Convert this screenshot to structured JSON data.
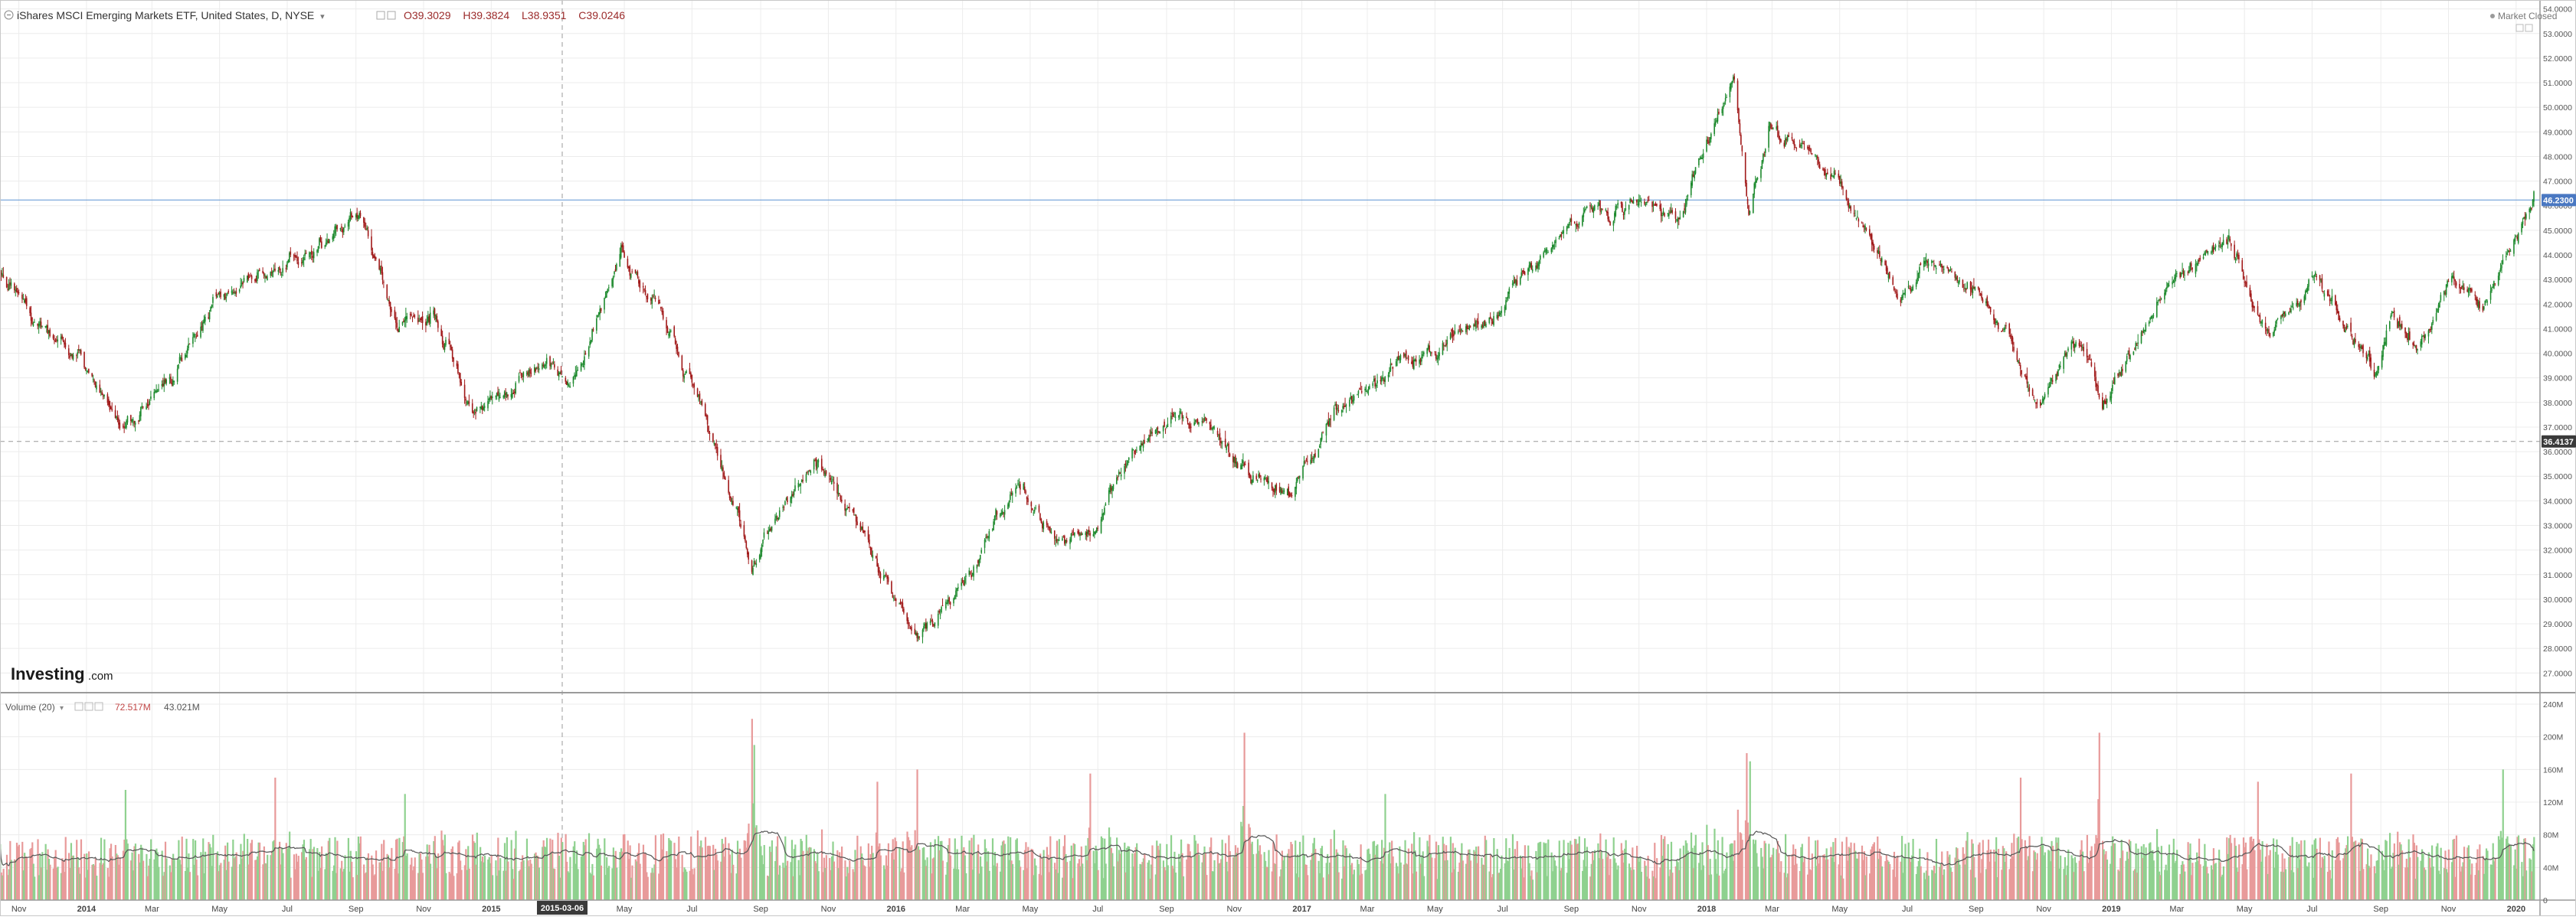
{
  "header": {
    "title": "iShares MSCI Emerging Markets ETF, United States, D, NYSE",
    "title_arrow": "▾",
    "open": "O39.3029",
    "high": "H39.3824",
    "low": "L38.9351",
    "close": "C39.0246",
    "market_status": "Market Closed"
  },
  "watermark": {
    "brand": "Investing",
    "suffix": ".com"
  },
  "volume_header": {
    "label": "Volume (20)",
    "label_arrow": "▾",
    "value_volume": "72.517M",
    "value_ma": "43.021M"
  },
  "price_tags": {
    "last": "46.2300",
    "crosshair": "36.4137"
  },
  "crosshair_date": "2015-03-06",
  "colors": {
    "up": "#1e8a2e",
    "down": "#a11a1a",
    "volume_up": "#8fd18f",
    "volume_down": "#e89a9a",
    "last_line": "#6f9fd8",
    "last_tag": "#4a78c2",
    "crosshair_tag": "#3a3a3a",
    "ma_line": "#555555",
    "grid": "#ececec"
  },
  "chart_data": [
    {
      "type": "candlestick",
      "series_name": "iShares MSCI Emerging Markets ETF",
      "x_range": [
        "2013-10-15",
        "2020-01-17"
      ],
      "ylim": [
        26.2,
        54.3
      ],
      "y_ticks": [
        "27.0000",
        "28.0000",
        "29.0000",
        "30.0000",
        "31.0000",
        "32.0000",
        "33.0000",
        "34.0000",
        "35.0000",
        "36.0000",
        "37.0000",
        "38.0000",
        "39.0000",
        "40.0000",
        "41.0000",
        "42.0000",
        "43.0000",
        "44.0000",
        "45.0000",
        "46.0000",
        "47.0000",
        "48.0000",
        "49.0000",
        "50.0000",
        "51.0000",
        "52.0000",
        "53.0000",
        "54.0000"
      ],
      "x_ticks": [
        {
          "date": "2013-11-01",
          "label": "Nov",
          "bold": false
        },
        {
          "date": "2014-01-01",
          "label": "2014",
          "bold": true
        },
        {
          "date": "2014-03-01",
          "label": "Mar",
          "bold": false
        },
        {
          "date": "2014-05-01",
          "label": "May",
          "bold": false
        },
        {
          "date": "2014-07-01",
          "label": "Jul",
          "bold": false
        },
        {
          "date": "2014-09-01",
          "label": "Sep",
          "bold": false
        },
        {
          "date": "2014-11-01",
          "label": "Nov",
          "bold": false
        },
        {
          "date": "2015-01-01",
          "label": "2015",
          "bold": true
        },
        {
          "date": "2015-05-01",
          "label": "May",
          "bold": false
        },
        {
          "date": "2015-07-01",
          "label": "Jul",
          "bold": false
        },
        {
          "date": "2015-09-01",
          "label": "Sep",
          "bold": false
        },
        {
          "date": "2015-11-01",
          "label": "Nov",
          "bold": false
        },
        {
          "date": "2016-01-01",
          "label": "2016",
          "bold": true
        },
        {
          "date": "2016-03-01",
          "label": "Mar",
          "bold": false
        },
        {
          "date": "2016-05-01",
          "label": "May",
          "bold": false
        },
        {
          "date": "2016-07-01",
          "label": "Jul",
          "bold": false
        },
        {
          "date": "2016-09-01",
          "label": "Sep",
          "bold": false
        },
        {
          "date": "2016-11-01",
          "label": "Nov",
          "bold": false
        },
        {
          "date": "2017-01-01",
          "label": "2017",
          "bold": true
        },
        {
          "date": "2017-03-01",
          "label": "Mar",
          "bold": false
        },
        {
          "date": "2017-05-01",
          "label": "May",
          "bold": false
        },
        {
          "date": "2017-07-01",
          "label": "Jul",
          "bold": false
        },
        {
          "date": "2017-09-01",
          "label": "Sep",
          "bold": false
        },
        {
          "date": "2017-11-01",
          "label": "Nov",
          "bold": false
        },
        {
          "date": "2018-01-01",
          "label": "2018",
          "bold": true
        },
        {
          "date": "2018-03-01",
          "label": "Mar",
          "bold": false
        },
        {
          "date": "2018-05-01",
          "label": "May",
          "bold": false
        },
        {
          "date": "2018-07-01",
          "label": "Jul",
          "bold": false
        },
        {
          "date": "2018-09-01",
          "label": "Sep",
          "bold": false
        },
        {
          "date": "2018-11-01",
          "label": "Nov",
          "bold": false
        },
        {
          "date": "2019-01-01",
          "label": "2019",
          "bold": true
        },
        {
          "date": "2019-03-01",
          "label": "Mar",
          "bold": false
        },
        {
          "date": "2019-05-01",
          "label": "May",
          "bold": false
        },
        {
          "date": "2019-07-01",
          "label": "Jul",
          "bold": false
        },
        {
          "date": "2019-09-01",
          "label": "Sep",
          "bold": false
        },
        {
          "date": "2019-11-01",
          "label": "Nov",
          "bold": false
        },
        {
          "date": "2020-01-01",
          "label": "2020",
          "bold": true
        }
      ],
      "last_price": 46.23,
      "crosshair_price": 36.4137,
      "close_path": [
        {
          "date": "2013-10-15",
          "close": 43.1
        },
        {
          "date": "2013-11-15",
          "close": 41.2
        },
        {
          "date": "2013-12-15",
          "close": 40.2
        },
        {
          "date": "2014-02-03",
          "close": 37.1
        },
        {
          "date": "2014-03-20",
          "close": 39.0
        },
        {
          "date": "2014-04-15",
          "close": 41.5
        },
        {
          "date": "2014-05-20",
          "close": 42.8
        },
        {
          "date": "2014-07-15",
          "close": 44.0
        },
        {
          "date": "2014-09-05",
          "close": 45.6
        },
        {
          "date": "2014-10-10",
          "close": 41.0
        },
        {
          "date": "2014-11-10",
          "close": 41.8
        },
        {
          "date": "2014-12-15",
          "close": 37.6
        },
        {
          "date": "2015-01-20",
          "close": 39.0
        },
        {
          "date": "2015-02-20",
          "close": 40.2
        },
        {
          "date": "2015-03-12",
          "close": 38.2
        },
        {
          "date": "2015-04-28",
          "close": 44.0
        },
        {
          "date": "2015-06-01",
          "close": 41.8
        },
        {
          "date": "2015-07-08",
          "close": 38.3
        },
        {
          "date": "2015-08-24",
          "close": 31.5
        },
        {
          "date": "2015-09-15",
          "close": 33.0
        },
        {
          "date": "2015-10-20",
          "close": 35.8
        },
        {
          "date": "2015-12-10",
          "close": 32.0
        },
        {
          "date": "2016-01-21",
          "close": 28.3
        },
        {
          "date": "2016-03-15",
          "close": 31.8
        },
        {
          "date": "2016-04-25",
          "close": 34.5
        },
        {
          "date": "2016-05-24",
          "close": 32.0
        },
        {
          "date": "2016-06-27",
          "close": 33.0
        },
        {
          "date": "2016-07-25",
          "close": 35.8
        },
        {
          "date": "2016-09-07",
          "close": 37.6
        },
        {
          "date": "2016-10-10",
          "close": 37.3
        },
        {
          "date": "2016-11-15",
          "close": 34.8
        },
        {
          "date": "2016-12-23",
          "close": 34.5
        },
        {
          "date": "2017-02-01",
          "close": 37.5
        },
        {
          "date": "2017-03-20",
          "close": 39.5
        },
        {
          "date": "2017-05-01",
          "close": 40.2
        },
        {
          "date": "2017-06-20",
          "close": 41.5
        },
        {
          "date": "2017-07-20",
          "close": 43.3
        },
        {
          "date": "2017-09-10",
          "close": 45.5
        },
        {
          "date": "2017-10-25",
          "close": 46.0
        },
        {
          "date": "2017-12-05",
          "close": 45.5
        },
        {
          "date": "2018-01-26",
          "close": 51.4
        },
        {
          "date": "2018-02-08",
          "close": 45.2
        },
        {
          "date": "2018-02-26",
          "close": 49.3
        },
        {
          "date": "2018-04-10",
          "close": 48.0
        },
        {
          "date": "2018-05-25",
          "close": 45.2
        },
        {
          "date": "2018-06-28",
          "close": 42.5
        },
        {
          "date": "2018-07-30",
          "close": 43.5
        },
        {
          "date": "2018-09-10",
          "close": 41.8
        },
        {
          "date": "2018-10-29",
          "close": 38.0
        },
        {
          "date": "2018-12-03",
          "close": 40.5
        },
        {
          "date": "2018-12-24",
          "close": 38.3
        },
        {
          "date": "2019-02-25",
          "close": 43.0
        },
        {
          "date": "2019-04-17",
          "close": 44.6
        },
        {
          "date": "2019-05-23",
          "close": 40.5
        },
        {
          "date": "2019-07-03",
          "close": 43.5
        },
        {
          "date": "2019-08-26",
          "close": 39.0
        },
        {
          "date": "2019-09-12",
          "close": 41.8
        },
        {
          "date": "2019-10-03",
          "close": 40.0
        },
        {
          "date": "2019-11-05",
          "close": 43.2
        },
        {
          "date": "2019-12-03",
          "close": 42.0
        },
        {
          "date": "2020-01-17",
          "close": 46.2
        }
      ]
    },
    {
      "type": "bar",
      "series_name": "Volume (20)",
      "ylim": [
        0,
        240
      ],
      "y_unit": "M",
      "y_ticks": [
        "0",
        "40M",
        "80M",
        "120M",
        "160M",
        "200M",
        "240M"
      ],
      "typical_volume_M": 55,
      "moving_average_period": 20,
      "spikes": [
        {
          "date": "2014-02-05",
          "volume_M": 135
        },
        {
          "date": "2014-06-20",
          "volume_M": 150
        },
        {
          "date": "2014-10-15",
          "volume_M": 130
        },
        {
          "date": "2015-08-24",
          "volume_M": 222
        },
        {
          "date": "2015-08-26",
          "volume_M": 190
        },
        {
          "date": "2015-12-15",
          "volume_M": 145
        },
        {
          "date": "2016-01-20",
          "volume_M": 160
        },
        {
          "date": "2016-06-24",
          "volume_M": 155
        },
        {
          "date": "2016-11-10",
          "volume_M": 205
        },
        {
          "date": "2017-03-17",
          "volume_M": 130
        },
        {
          "date": "2018-02-06",
          "volume_M": 180
        },
        {
          "date": "2018-02-09",
          "volume_M": 170
        },
        {
          "date": "2018-10-11",
          "volume_M": 150
        },
        {
          "date": "2018-12-21",
          "volume_M": 205
        },
        {
          "date": "2019-05-13",
          "volume_M": 145
        },
        {
          "date": "2019-08-05",
          "volume_M": 155
        },
        {
          "date": "2019-12-20",
          "volume_M": 160
        }
      ]
    }
  ]
}
